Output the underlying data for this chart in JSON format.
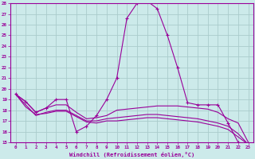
{
  "xlabel": "Windchill (Refroidissement éolien,°C)",
  "background_color": "#cceaea",
  "grid_color": "#aacccc",
  "line_color": "#990099",
  "xlim": [
    -0.5,
    23.5
  ],
  "ylim": [
    15,
    28
  ],
  "xticks": [
    0,
    1,
    2,
    3,
    4,
    5,
    6,
    7,
    8,
    9,
    10,
    11,
    12,
    13,
    14,
    15,
    16,
    17,
    18,
    19,
    20,
    21,
    22,
    23
  ],
  "yticks": [
    15,
    16,
    17,
    18,
    19,
    20,
    21,
    22,
    23,
    24,
    25,
    26,
    27,
    28
  ],
  "series": [
    {
      "x": [
        0,
        1,
        2,
        3,
        4,
        5,
        6,
        7,
        8,
        9,
        10,
        11,
        12,
        13,
        14,
        15,
        16,
        17,
        18,
        19,
        20,
        21,
        22,
        23
      ],
      "y": [
        19.5,
        18.8,
        17.8,
        18.2,
        19.0,
        19.0,
        16.0,
        16.5,
        17.5,
        19.0,
        21.0,
        26.6,
        28.0,
        28.2,
        27.5,
        25.0,
        22.0,
        18.7,
        18.5,
        18.5,
        18.5,
        16.8,
        15.0,
        14.8
      ],
      "marker": "+"
    },
    {
      "x": [
        0,
        1,
        2,
        3,
        4,
        5,
        6,
        7,
        8,
        9,
        10,
        11,
        12,
        13,
        14,
        15,
        16,
        17,
        18,
        19,
        20,
        21,
        22,
        23
      ],
      "y": [
        19.5,
        18.8,
        17.8,
        18.2,
        18.5,
        18.5,
        17.8,
        17.2,
        17.3,
        17.5,
        18.0,
        18.1,
        18.2,
        18.3,
        18.4,
        18.4,
        18.4,
        18.3,
        18.2,
        18.1,
        17.8,
        17.2,
        16.8,
        15.0
      ],
      "marker": null
    },
    {
      "x": [
        0,
        1,
        2,
        3,
        4,
        5,
        6,
        7,
        8,
        9,
        10,
        11,
        12,
        13,
        14,
        15,
        16,
        17,
        18,
        19,
        20,
        21,
        22,
        23
      ],
      "y": [
        19.5,
        18.5,
        17.5,
        17.8,
        18.0,
        18.0,
        17.5,
        17.0,
        17.0,
        17.2,
        17.3,
        17.4,
        17.5,
        17.6,
        17.6,
        17.5,
        17.4,
        17.3,
        17.2,
        17.0,
        16.8,
        16.5,
        15.8,
        14.8
      ],
      "marker": null
    },
    {
      "x": [
        0,
        1,
        2,
        3,
        4,
        5,
        6,
        7,
        8,
        9,
        10,
        11,
        12,
        13,
        14,
        15,
        16,
        17,
        18,
        19,
        20,
        21,
        22,
        23
      ],
      "y": [
        19.5,
        18.3,
        17.6,
        17.7,
        17.9,
        17.9,
        17.4,
        16.9,
        16.8,
        17.0,
        17.0,
        17.1,
        17.2,
        17.3,
        17.3,
        17.2,
        17.1,
        17.0,
        16.9,
        16.7,
        16.5,
        16.2,
        15.5,
        14.8
      ],
      "marker": null
    }
  ]
}
